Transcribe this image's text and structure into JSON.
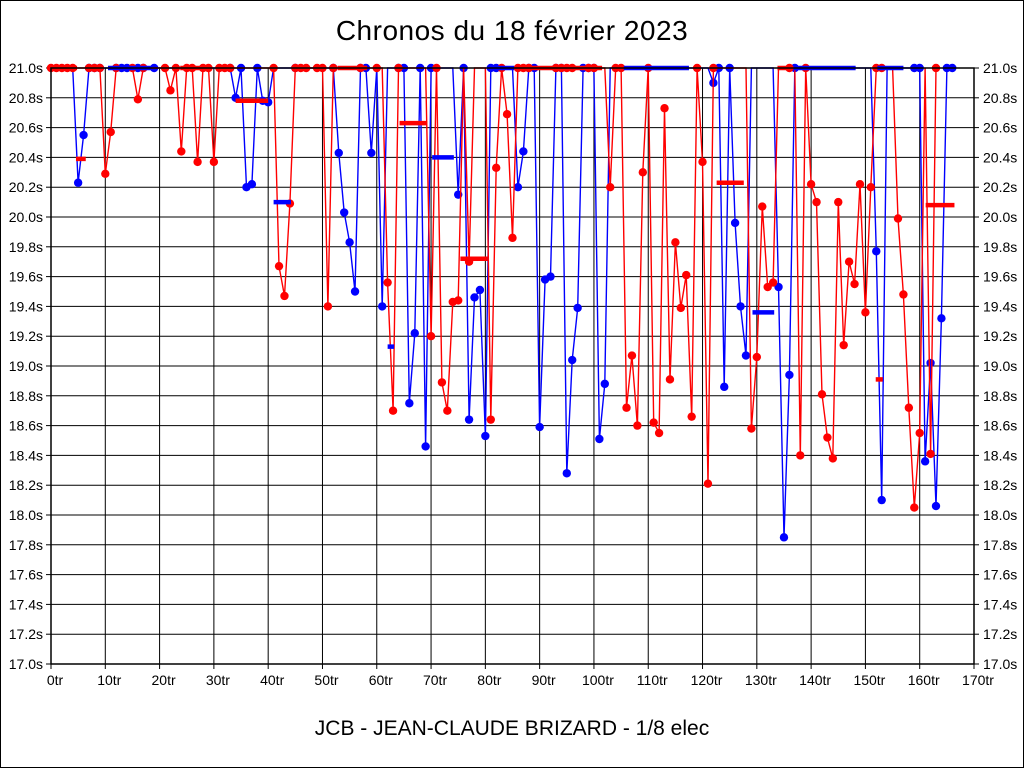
{
  "title": "Chronos du 18 février 2023",
  "footer": "JCB - JEAN-CLAUDE BRIZARD - 1/8 elec",
  "chart_data": {
    "type": "line",
    "title": "Chronos du 18 février 2023",
    "subtitle": "JCB - JEAN-CLAUDE BRIZARD - 1/8 elec",
    "x_unit": "tr",
    "y_unit": "s",
    "xlim": [
      0,
      170
    ],
    "ylim": [
      17.0,
      21.0
    ],
    "grid": true,
    "clip_at": 21.0,
    "x_tick_values": [
      0,
      10,
      20,
      30,
      40,
      50,
      60,
      70,
      80,
      90,
      100,
      110,
      120,
      130,
      140,
      150,
      160,
      170
    ],
    "x_tick_labels": [
      "0tr",
      "10tr",
      "20tr",
      "30tr",
      "40tr",
      "50tr",
      "60tr",
      "70tr",
      "80tr",
      "90tr",
      "100tr",
      "110tr",
      "120tr",
      "130tr",
      "140tr",
      "150tr",
      "160tr",
      "170tr"
    ],
    "y_tick_values": [
      21.0,
      20.8,
      20.6,
      20.4,
      20.2,
      20.0,
      19.8,
      19.6,
      19.4,
      19.2,
      19.0,
      18.8,
      18.6,
      18.4,
      18.2,
      18.0,
      17.8,
      17.6,
      17.4,
      17.2,
      17.0
    ],
    "y_tick_labels": [
      "21.0s",
      "20.8s",
      "20.6s",
      "20.4s",
      "20.2s",
      "20.0s",
      "19.8s",
      "19.6s",
      "19.4s",
      "19.2s",
      "19.0s",
      "18.8s",
      "18.6s",
      "18.4s",
      "18.2s",
      "18.0s",
      "17.8s",
      "17.6s",
      "17.4s",
      "17.2s",
      "17.0s"
    ],
    "colors": {
      "red_series": "#ff0000",
      "blue_series": "#0000ff",
      "grid": "#000000",
      "text": "#000000"
    },
    "series": [
      {
        "name": "blue-driver",
        "color": "#0000ff",
        "default_time": 21.0,
        "lap_range": [
          4,
          166
        ],
        "dips": {
          "5": 20.23,
          "6": 20.55,
          "34": 20.8,
          "36": 20.2,
          "37": 20.22,
          "39": 20.78,
          "40": 20.77,
          "53": 20.43,
          "54": 20.03,
          "55": 19.83,
          "56": 19.5,
          "59": 20.43,
          "61": 19.4,
          "66": 18.75,
          "67": 19.22,
          "69": 18.46,
          "75": 20.15,
          "77": 18.64,
          "78": 19.46,
          "79": 19.51,
          "80": 18.53,
          "86": 20.2,
          "87": 20.44,
          "90": 18.59,
          "91": 19.58,
          "92": 19.6,
          "95": 18.28,
          "96": 19.04,
          "97": 19.39,
          "101": 18.51,
          "102": 18.88,
          "122": 20.9,
          "124": 18.86,
          "126": 19.96,
          "127": 19.4,
          "128": 19.07,
          "134": 19.53,
          "135": 17.85,
          "136": 18.94,
          "152": 19.77,
          "153": 18.1,
          "161": 18.36,
          "162": 19.02,
          "163": 18.06,
          "164": 19.32
        },
        "marker_laps_at_max": [
          7,
          8,
          9,
          12,
          13,
          14,
          16,
          17,
          19,
          33,
          35,
          38,
          45,
          52,
          57,
          58,
          64,
          65,
          68,
          70,
          76,
          81,
          82,
          88,
          89,
          93,
          94,
          98,
          99,
          100,
          123,
          125,
          137,
          159,
          160,
          165,
          166
        ]
      },
      {
        "name": "red-driver",
        "color": "#ff0000",
        "default_time": 21.0,
        "lap_range": [
          0,
          163
        ],
        "dips": {
          "10": 20.29,
          "11": 20.57,
          "16": 20.79,
          "22": 20.85,
          "24": 20.44,
          "27": 20.37,
          "30": 20.37,
          "42": 19.67,
          "43": 19.47,
          "44": 20.09,
          "51": 19.4,
          "62": 19.56,
          "63": 18.7,
          "70": 19.2,
          "72": 18.89,
          "73": 18.7,
          "74": 19.43,
          "75": 19.44,
          "77": 19.7,
          "81": 18.64,
          "82": 20.33,
          "84": 20.69,
          "85": 19.86,
          "103": 20.2,
          "106": 18.72,
          "107": 19.07,
          "108": 18.6,
          "109": 20.3,
          "111": 18.62,
          "112": 18.55,
          "113": 20.73,
          "114": 18.91,
          "115": 19.83,
          "116": 19.39,
          "117": 19.61,
          "118": 18.66,
          "120": 20.37,
          "121": 18.21,
          "129": 18.58,
          "130": 19.06,
          "131": 20.07,
          "132": 19.53,
          "133": 19.56,
          "138": 18.4,
          "140": 20.22,
          "141": 20.1,
          "142": 18.81,
          "143": 18.52,
          "144": 18.38,
          "145": 20.1,
          "146": 19.14,
          "147": 19.7,
          "148": 19.55,
          "149": 20.22,
          "150": 19.36,
          "151": 20.2,
          "156": 19.99,
          "157": 19.48,
          "158": 18.72,
          "159": 18.05,
          "160": 18.55,
          "162": 18.41
        },
        "marker_laps_at_max": [
          0,
          1,
          2,
          3,
          4,
          7,
          8,
          9,
          12,
          15,
          17,
          21,
          23,
          25,
          26,
          28,
          29,
          31,
          32,
          33,
          41,
          45,
          46,
          47,
          49,
          50,
          52,
          57,
          60,
          64,
          71,
          83,
          86,
          87,
          88,
          93,
          94,
          95,
          96,
          99,
          100,
          104,
          105,
          110,
          119,
          122,
          136,
          139,
          152,
          153,
          163
        ]
      }
    ],
    "average_bars": [
      {
        "color": "#ff0000",
        "from": 0.3,
        "to": 4.8,
        "time": 21.0
      },
      {
        "color": "#ff0000",
        "from": 4.6,
        "to": 6.4,
        "time": 20.39
      },
      {
        "color": "#0000ff",
        "from": 10.5,
        "to": 18.5,
        "time": 21.0
      },
      {
        "color": "#ff0000",
        "from": 23.8,
        "to": 29.5,
        "time": 21.0
      },
      {
        "color": "#ff0000",
        "from": 34.0,
        "to": 40.0,
        "time": 20.78
      },
      {
        "color": "#0000ff",
        "from": 41.0,
        "to": 44.2,
        "time": 20.1
      },
      {
        "color": "#ff0000",
        "from": 52.8,
        "to": 58.2,
        "time": 21.0
      },
      {
        "color": "#0000ff",
        "from": 62.0,
        "to": 63.2,
        "time": 19.13
      },
      {
        "color": "#ff0000",
        "from": 64.2,
        "to": 69.3,
        "time": 20.63
      },
      {
        "color": "#0000ff",
        "from": 70.2,
        "to": 74.2,
        "time": 20.4
      },
      {
        "color": "#ff0000",
        "from": 75.4,
        "to": 80.4,
        "time": 19.72
      },
      {
        "color": "#0000ff",
        "from": 81.2,
        "to": 85.3,
        "time": 21.0
      },
      {
        "color": "#ff0000",
        "from": 85.6,
        "to": 101.5,
        "time": 21.0
      },
      {
        "color": "#0000ff",
        "from": 105.5,
        "to": 117.5,
        "time": 21.0
      },
      {
        "color": "#ff0000",
        "from": 122.6,
        "to": 127.6,
        "time": 20.23
      },
      {
        "color": "#0000ff",
        "from": 129.2,
        "to": 133.2,
        "time": 19.36
      },
      {
        "color": "#ff0000",
        "from": 133.8,
        "to": 136.3,
        "time": 21.0
      },
      {
        "color": "#0000ff",
        "from": 136.8,
        "to": 148.2,
        "time": 21.0
      },
      {
        "color": "#ff0000",
        "from": 151.9,
        "to": 153.2,
        "time": 18.91
      },
      {
        "color": "#0000ff",
        "from": 152.2,
        "to": 157.0,
        "time": 21.0
      },
      {
        "color": "#ff0000",
        "from": 161.1,
        "to": 166.4,
        "time": 20.08
      }
    ]
  }
}
